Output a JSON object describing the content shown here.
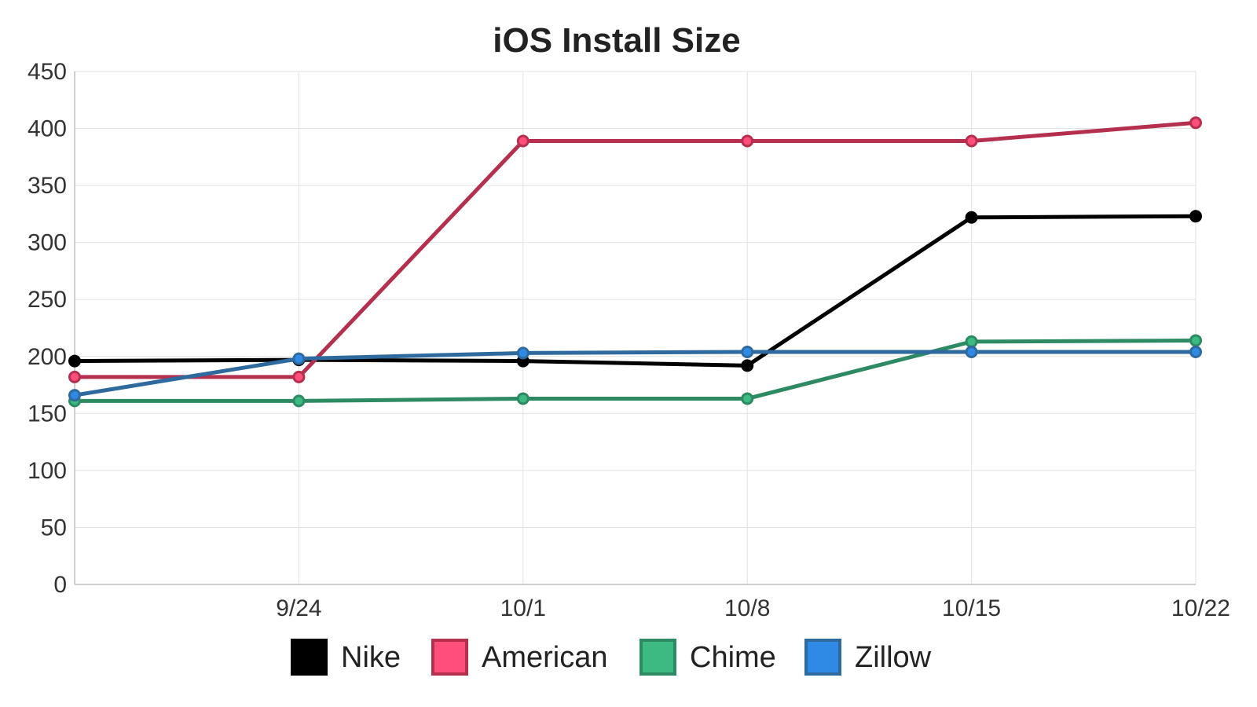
{
  "chart_data": {
    "type": "line",
    "title": "iOS Install Size",
    "xlabel": "",
    "ylabel": "",
    "ylim": [
      0,
      450
    ],
    "yticks": [
      0,
      50,
      100,
      150,
      200,
      250,
      300,
      350,
      400,
      450
    ],
    "x_tick_labels": [
      "9/24",
      "10/1",
      "10/8",
      "10/15",
      "10/22"
    ],
    "categories": [
      "",
      "9/24",
      "10/1",
      "10/8",
      "10/15",
      "10/22"
    ],
    "grid": true,
    "legend_position": "bottom",
    "series": [
      {
        "name": "Nike",
        "color": "#000000",
        "fill": "#000000",
        "values": [
          196,
          197,
          196,
          192,
          322,
          323
        ]
      },
      {
        "name": "American",
        "color": "#b5304f",
        "fill": "#ff4f7a",
        "values": [
          182,
          182,
          389,
          389,
          389,
          405
        ]
      },
      {
        "name": "Chime",
        "color": "#2e8a63",
        "fill": "#3dba82",
        "values": [
          161,
          161,
          163,
          163,
          213,
          214
        ]
      },
      {
        "name": "Zillow",
        "color": "#2f6a9e",
        "fill": "#2f8ae6",
        "values": [
          166,
          198,
          203,
          204,
          204,
          204
        ]
      }
    ]
  }
}
